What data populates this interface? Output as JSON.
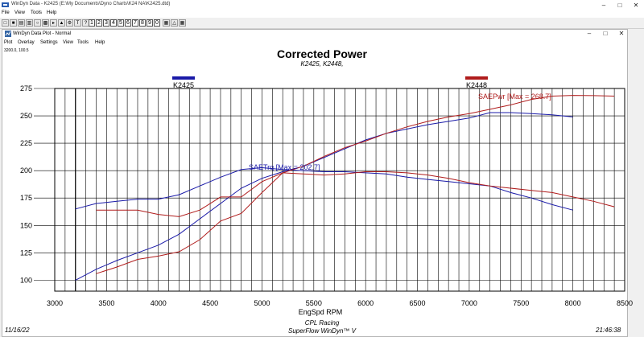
{
  "app": {
    "title": "WinDyn Data - K2425  (E:\\My Documents\\Dyno Charts\\K24 NA\\K2425.dtd)",
    "menu": [
      "File",
      "View",
      "Tools",
      "Help"
    ],
    "toolbar_numbers": [
      "1",
      "2",
      "3",
      "4",
      "5",
      "6",
      "7",
      "8",
      "9",
      "0"
    ]
  },
  "doc": {
    "title": "WinDyn Data Plot - Normal",
    "menu": [
      "Plot",
      "Overlay",
      "Settings",
      "View",
      "Tools",
      "Help"
    ],
    "coords": "3200.0, 100.5"
  },
  "chart": {
    "title": "Corrected Power",
    "subtitle": "K2425, K2448,",
    "footer_date": "11/16/22",
    "footer_time": "21:46:38",
    "footer_company": "CPL Racing",
    "footer_software": "SuperFlow WinDyn™ V"
  },
  "chart_data": {
    "type": "line",
    "xlabel": "EngSpd RPM",
    "ylabel": "",
    "xlim": [
      3000,
      8500
    ],
    "ylim": [
      90,
      275
    ],
    "xticks": [
      3000,
      3500,
      4000,
      4500,
      5000,
      5500,
      6000,
      6500,
      7000,
      7500,
      8000,
      8500
    ],
    "yticks": [
      100,
      125,
      150,
      175,
      200,
      225,
      250,
      275
    ],
    "grid": true,
    "legend": [
      {
        "name": "K2425",
        "color": "#1a1aa8"
      },
      {
        "name": "K2448",
        "color": "#b01c1c"
      }
    ],
    "annotations": [
      {
        "text": "SAETrq [Max = 202.7]",
        "color": "#1a1aa8"
      },
      {
        "text": "SAEPwr [Max = 268.7]",
        "color": "#b01c1c"
      }
    ],
    "series": [
      {
        "name": "K2425",
        "kind": "SAEPwr",
        "color": "#1a1aa8",
        "x": [
          3200,
          3400,
          3600,
          3800,
          4000,
          4200,
          4400,
          4600,
          4800,
          5000,
          5200,
          5400,
          5600,
          5800,
          6000,
          6200,
          6400,
          6600,
          6800,
          7000,
          7200,
          7400,
          7600,
          7800,
          8000
        ],
        "y": [
          100,
          110,
          118,
          125,
          132,
          142,
          156,
          170,
          184,
          193,
          199,
          204,
          212,
          220,
          228,
          234,
          238,
          242,
          245,
          248,
          253,
          253,
          252,
          251,
          249
        ]
      },
      {
        "name": "K2425",
        "kind": "SAETrq",
        "color": "#1a1aa8",
        "x": [
          3200,
          3400,
          3600,
          3800,
          4000,
          4200,
          4400,
          4600,
          4800,
          5000,
          5200,
          5400,
          5600,
          5800,
          6000,
          6200,
          6400,
          6600,
          6800,
          7000,
          7200,
          7400,
          7600,
          7800,
          8000
        ],
        "y": [
          165,
          170,
          172,
          174,
          174,
          178,
          186,
          194,
          201,
          202.7,
          201,
          200,
          199,
          199,
          198,
          197,
          194,
          192,
          190,
          188,
          186,
          180,
          175,
          169,
          164
        ]
      },
      {
        "name": "K2448",
        "kind": "SAEPwr",
        "color": "#b01c1c",
        "x": [
          3400,
          3600,
          3800,
          4000,
          4200,
          4400,
          4600,
          4800,
          5000,
          5200,
          5400,
          5600,
          5800,
          6000,
          6200,
          6400,
          6600,
          6800,
          7000,
          7200,
          7400,
          7600,
          7800,
          8000,
          8200,
          8400
        ],
        "y": [
          106,
          112,
          119,
          122,
          126,
          137,
          154,
          161,
          180,
          198,
          204,
          213,
          221,
          227,
          234,
          240,
          245,
          249,
          252,
          256,
          260,
          265,
          268,
          268.7,
          268.5,
          268
        ]
      },
      {
        "name": "K2448",
        "kind": "SAETrq",
        "color": "#b01c1c",
        "x": [
          3400,
          3600,
          3800,
          4000,
          4200,
          4400,
          4600,
          4800,
          5000,
          5200,
          5400,
          5600,
          5800,
          6000,
          6200,
          6400,
          6600,
          6800,
          7000,
          7200,
          7400,
          7600,
          7800,
          8000,
          8200,
          8400
        ],
        "y": [
          164,
          164,
          164,
          160,
          158,
          164,
          176,
          176,
          190,
          198,
          197,
          196,
          197,
          199,
          199,
          198,
          196,
          193,
          189,
          186,
          184,
          182,
          180,
          176,
          172,
          167
        ]
      }
    ]
  }
}
